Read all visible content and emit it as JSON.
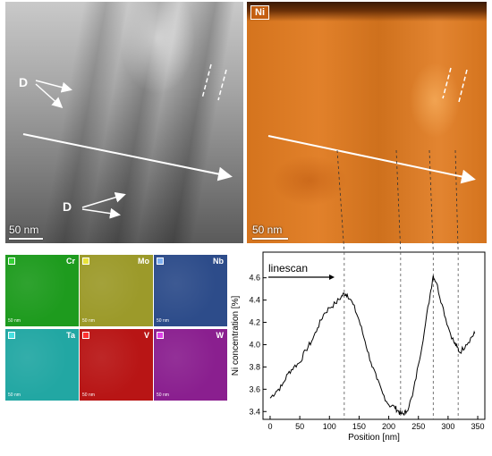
{
  "tem_panel": {
    "labels": [
      "D",
      "D"
    ],
    "scale_bar": "50 nm"
  },
  "ni_map": {
    "element": "Ni",
    "scale_bar": "50 nm"
  },
  "eds_maps": [
    {
      "element": "Cr",
      "color": "#1e9b1e",
      "tag_color": "#35d235",
      "scale_bar": "50 nm"
    },
    {
      "element": "Mo",
      "color": "#9c9a2a",
      "tag_color": "#e8e23a",
      "scale_bar": "50 nm"
    },
    {
      "element": "Nb",
      "color": "#2d4c8a",
      "tag_color": "#7fb0f0",
      "scale_bar": "50 nm"
    },
    {
      "element": "Ta",
      "color": "#22a7a3",
      "tag_color": "#46e0e0",
      "scale_bar": "50 nm"
    },
    {
      "element": "V",
      "color": "#b81515",
      "tag_color": "#ff3030",
      "scale_bar": "50 nm"
    },
    {
      "element": "W",
      "color": "#8a1f8f",
      "tag_color": "#e040e8",
      "scale_bar": "50 nm"
    }
  ],
  "chart_data": {
    "type": "line",
    "annotation": "linescan",
    "xlabel": "Position [nm]",
    "ylabel": "Ni concentration [%]",
    "xlim": [
      -12,
      362
    ],
    "ylim": [
      3.33,
      4.83
    ],
    "xticks": [
      0,
      50,
      100,
      150,
      200,
      250,
      300,
      350
    ],
    "yticks": [
      3.4,
      3.6,
      3.8,
      4.0,
      4.2,
      4.4,
      4.6
    ],
    "x": [
      0,
      10,
      20,
      30,
      40,
      50,
      60,
      70,
      80,
      90,
      100,
      110,
      120,
      125,
      130,
      140,
      150,
      160,
      170,
      180,
      190,
      200,
      210,
      215,
      220,
      225,
      230,
      240,
      250,
      260,
      270,
      275,
      280,
      290,
      300,
      310,
      315,
      320,
      330,
      340,
      345
    ],
    "y": [
      3.52,
      3.58,
      3.63,
      3.74,
      3.8,
      3.84,
      3.95,
      4.03,
      4.15,
      4.27,
      4.33,
      4.37,
      4.43,
      4.46,
      4.45,
      4.36,
      4.22,
      4.03,
      3.84,
      3.69,
      3.56,
      3.46,
      3.44,
      3.41,
      3.38,
      3.38,
      3.4,
      3.54,
      3.82,
      4.12,
      4.46,
      4.62,
      4.56,
      4.36,
      4.16,
      4.02,
      3.98,
      3.93,
      4.0,
      4.07,
      4.1
    ],
    "markers": [
      125,
      220,
      275,
      317
    ],
    "grid": false
  }
}
